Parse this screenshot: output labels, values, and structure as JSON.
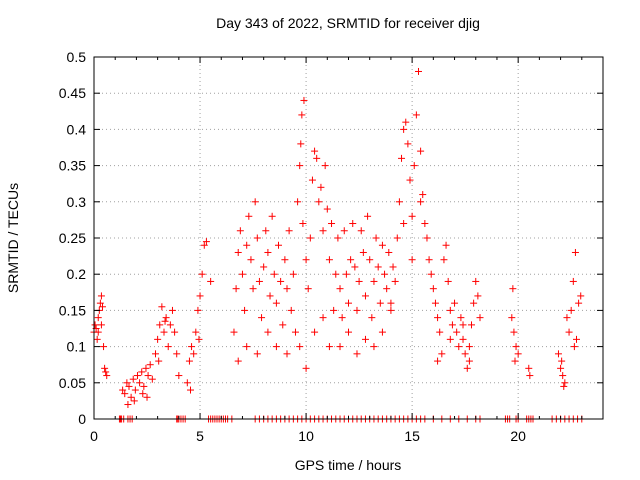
{
  "chart_data": {
    "type": "scatter",
    "title": "Day 343 of 2022, SRMTID for receiver djig",
    "xlabel": "GPS time / hours",
    "ylabel": "SRMTID / TECUs",
    "xlim": [
      0,
      24
    ],
    "ylim": [
      0,
      0.5
    ],
    "xticks": [
      0,
      5,
      10,
      15,
      20
    ],
    "yticks": [
      0,
      0.05,
      0.1,
      0.15,
      0.2,
      0.25,
      0.3,
      0.35,
      0.4,
      0.45,
      0.5
    ],
    "xtick_labels": [
      "0",
      "5",
      "10",
      "15",
      "20"
    ],
    "ytick_labels": [
      "0",
      "0.05",
      "0.1",
      "0.15",
      "0.2",
      "0.25",
      "0.3",
      "0.35",
      "0.4",
      "0.45",
      "0.5"
    ],
    "grid": true,
    "marker": "+",
    "color": "#ff0000",
    "series": [
      {
        "points": [
          [
            0.0,
            0.12
          ],
          [
            0.05,
            0.13
          ],
          [
            0.1,
            0.125
          ],
          [
            0.15,
            0.11
          ],
          [
            0.2,
            0.14
          ],
          [
            0.25,
            0.15
          ],
          [
            0.3,
            0.16
          ],
          [
            0.35,
            0.17
          ],
          [
            0.4,
            0.155
          ],
          [
            0.45,
            0.1
          ],
          [
            0.5,
            0.07
          ],
          [
            0.55,
            0.065
          ],
          [
            0.6,
            0.06
          ],
          [
            0.35,
            0.13
          ],
          [
            0.2,
            0.12
          ],
          [
            1.35,
            0.04
          ],
          [
            1.45,
            0.035
          ],
          [
            1.55,
            0.05
          ],
          [
            1.65,
            0.045
          ],
          [
            1.75,
            0.03
          ],
          [
            1.85,
            0.055
          ],
          [
            1.95,
            0.04
          ],
          [
            2.05,
            0.06
          ],
          [
            2.15,
            0.05
          ],
          [
            2.25,
            0.065
          ],
          [
            2.35,
            0.045
          ],
          [
            2.45,
            0.07
          ],
          [
            2.55,
            0.06
          ],
          [
            2.65,
            0.075
          ],
          [
            2.75,
            0.055
          ],
          [
            1.6,
            0.02
          ],
          [
            1.9,
            0.025
          ],
          [
            2.3,
            0.035
          ],
          [
            2.5,
            0.03
          ],
          [
            2.9,
            0.09
          ],
          [
            3.0,
            0.11
          ],
          [
            3.1,
            0.13
          ],
          [
            3.2,
            0.155
          ],
          [
            3.3,
            0.12
          ],
          [
            3.4,
            0.14
          ],
          [
            3.5,
            0.1
          ],
          [
            3.6,
            0.13
          ],
          [
            3.7,
            0.15
          ],
          [
            3.8,
            0.12
          ],
          [
            3.9,
            0.09
          ],
          [
            4.0,
            0.06
          ],
          [
            3.05,
            0.08
          ],
          [
            3.35,
            0.135
          ],
          [
            4.4,
            0.05
          ],
          [
            4.5,
            0.08
          ],
          [
            4.6,
            0.1
          ],
          [
            4.7,
            0.09
          ],
          [
            4.8,
            0.12
          ],
          [
            4.9,
            0.15
          ],
          [
            5.0,
            0.17
          ],
          [
            5.1,
            0.2
          ],
          [
            5.2,
            0.24
          ],
          [
            5.3,
            0.245
          ],
          [
            4.55,
            0.04
          ],
          [
            4.95,
            0.11
          ],
          [
            5.5,
            0.19
          ],
          [
            6.6,
            0.12
          ],
          [
            6.7,
            0.18
          ],
          [
            6.8,
            0.23
          ],
          [
            6.9,
            0.26
          ],
          [
            7.0,
            0.2
          ],
          [
            7.1,
            0.15
          ],
          [
            7.2,
            0.24
          ],
          [
            7.3,
            0.28
          ],
          [
            7.4,
            0.22
          ],
          [
            7.5,
            0.18
          ],
          [
            7.6,
            0.3
          ],
          [
            7.7,
            0.25
          ],
          [
            7.8,
            0.19
          ],
          [
            7.9,
            0.14
          ],
          [
            8.0,
            0.21
          ],
          [
            8.1,
            0.26
          ],
          [
            8.2,
            0.23
          ],
          [
            8.3,
            0.17
          ],
          [
            8.4,
            0.28
          ],
          [
            8.5,
            0.2
          ],
          [
            8.6,
            0.16
          ],
          [
            8.7,
            0.24
          ],
          [
            8.8,
            0.19
          ],
          [
            8.9,
            0.13
          ],
          [
            9.0,
            0.22
          ],
          [
            9.1,
            0.18
          ],
          [
            9.2,
            0.26
          ],
          [
            9.3,
            0.15
          ],
          [
            9.4,
            0.2
          ],
          [
            9.5,
            0.12
          ],
          [
            6.8,
            0.08
          ],
          [
            7.2,
            0.1
          ],
          [
            7.7,
            0.09
          ],
          [
            8.2,
            0.12
          ],
          [
            8.6,
            0.1
          ],
          [
            9.1,
            0.09
          ],
          [
            9.6,
            0.3
          ],
          [
            9.7,
            0.35
          ],
          [
            9.8,
            0.42
          ],
          [
            9.9,
            0.44
          ],
          [
            9.75,
            0.38
          ],
          [
            9.85,
            0.27
          ],
          [
            10.0,
            0.22
          ],
          [
            10.1,
            0.18
          ],
          [
            10.2,
            0.25
          ],
          [
            10.3,
            0.33
          ],
          [
            10.4,
            0.37
          ],
          [
            10.5,
            0.36
          ],
          [
            10.6,
            0.3
          ],
          [
            10.7,
            0.32
          ],
          [
            10.8,
            0.26
          ],
          [
            10.9,
            0.35
          ],
          [
            11.0,
            0.29
          ],
          [
            11.1,
            0.22
          ],
          [
            11.2,
            0.27
          ],
          [
            11.3,
            0.15
          ],
          [
            9.7,
            0.1
          ],
          [
            10.0,
            0.07
          ],
          [
            10.4,
            0.12
          ],
          [
            10.8,
            0.14
          ],
          [
            11.1,
            0.1
          ],
          [
            11.4,
            0.2
          ],
          [
            11.5,
            0.25
          ],
          [
            11.6,
            0.18
          ],
          [
            11.7,
            0.14
          ],
          [
            11.8,
            0.26
          ],
          [
            11.9,
            0.2
          ],
          [
            12.0,
            0.16
          ],
          [
            12.1,
            0.22
          ],
          [
            12.2,
            0.27
          ],
          [
            12.3,
            0.21
          ],
          [
            12.4,
            0.15
          ],
          [
            12.5,
            0.19
          ],
          [
            12.6,
            0.26
          ],
          [
            12.7,
            0.23
          ],
          [
            12.8,
            0.17
          ],
          [
            12.9,
            0.28
          ],
          [
            13.0,
            0.22
          ],
          [
            13.1,
            0.14
          ],
          [
            13.2,
            0.19
          ],
          [
            13.3,
            0.25
          ],
          [
            13.4,
            0.21
          ],
          [
            13.5,
            0.16
          ],
          [
            13.6,
            0.24
          ],
          [
            13.7,
            0.2
          ],
          [
            13.8,
            0.18
          ],
          [
            13.9,
            0.23
          ],
          [
            14.0,
            0.15
          ],
          [
            14.1,
            0.21
          ],
          [
            14.2,
            0.19
          ],
          [
            14.3,
            0.25
          ],
          [
            11.6,
            0.1
          ],
          [
            12.0,
            0.12
          ],
          [
            12.4,
            0.09
          ],
          [
            12.8,
            0.11
          ],
          [
            13.2,
            0.1
          ],
          [
            13.6,
            0.12
          ],
          [
            14.0,
            0.16
          ],
          [
            14.4,
            0.3
          ],
          [
            14.5,
            0.36
          ],
          [
            14.6,
            0.4
          ],
          [
            14.7,
            0.41
          ],
          [
            14.8,
            0.38
          ],
          [
            14.9,
            0.33
          ],
          [
            15.0,
            0.28
          ],
          [
            15.1,
            0.35
          ],
          [
            15.2,
            0.42
          ],
          [
            15.3,
            0.48
          ],
          [
            15.4,
            0.37
          ],
          [
            15.5,
            0.31
          ],
          [
            15.6,
            0.27
          ],
          [
            15.7,
            0.25
          ],
          [
            15.8,
            0.22
          ],
          [
            14.6,
            0.27
          ],
          [
            15.0,
            0.22
          ],
          [
            15.4,
            0.3
          ],
          [
            15.9,
            0.2
          ],
          [
            16.0,
            0.18
          ],
          [
            16.1,
            0.16
          ],
          [
            16.2,
            0.14
          ],
          [
            16.3,
            0.12
          ],
          [
            16.4,
            0.09
          ],
          [
            16.5,
            0.22
          ],
          [
            16.6,
            0.24
          ],
          [
            16.7,
            0.19
          ],
          [
            16.8,
            0.15
          ],
          [
            16.9,
            0.13
          ],
          [
            17.0,
            0.16
          ],
          [
            17.1,
            0.12
          ],
          [
            17.2,
            0.1
          ],
          [
            17.3,
            0.14
          ],
          [
            17.4,
            0.11
          ],
          [
            17.5,
            0.09
          ],
          [
            17.6,
            0.07
          ],
          [
            17.7,
            0.1
          ],
          [
            17.8,
            0.13
          ],
          [
            17.9,
            0.16
          ],
          [
            18.0,
            0.19
          ],
          [
            18.1,
            0.17
          ],
          [
            18.2,
            0.14
          ],
          [
            16.2,
            0.08
          ],
          [
            16.8,
            0.11
          ],
          [
            17.4,
            0.13
          ],
          [
            17.7,
            0.08
          ],
          [
            19.7,
            0.14
          ],
          [
            19.8,
            0.12
          ],
          [
            19.9,
            0.1
          ],
          [
            20.0,
            0.09
          ],
          [
            19.75,
            0.18
          ],
          [
            19.85,
            0.08
          ],
          [
            20.5,
            0.07
          ],
          [
            20.55,
            0.06
          ],
          [
            21.9,
            0.09
          ],
          [
            22.0,
            0.07
          ],
          [
            22.1,
            0.06
          ],
          [
            22.2,
            0.05
          ],
          [
            22.05,
            0.08
          ],
          [
            22.15,
            0.045
          ],
          [
            22.3,
            0.14
          ],
          [
            22.4,
            0.12
          ],
          [
            22.5,
            0.15
          ],
          [
            22.6,
            0.19
          ],
          [
            22.7,
            0.23
          ],
          [
            22.65,
            0.1
          ],
          [
            22.75,
            0.11
          ],
          [
            22.85,
            0.16
          ],
          [
            22.95,
            0.17
          ]
        ]
      }
    ],
    "zero_points_x": [
      1.2,
      1.25,
      1.3,
      1.4,
      1.6,
      1.7,
      1.8,
      3.9,
      3.95,
      4.0,
      4.1,
      4.2,
      4.3,
      5.4,
      5.5,
      5.6,
      5.7,
      5.8,
      5.9,
      6.0,
      6.1,
      6.2,
      6.3,
      6.5,
      7.6,
      7.8,
      8.0,
      8.2,
      8.4,
      8.6,
      8.8,
      9.0,
      9.2,
      9.4,
      9.6,
      9.8,
      10.0,
      10.2,
      10.4,
      10.6,
      10.8,
      11.0,
      11.2,
      11.4,
      11.6,
      11.8,
      12.0,
      12.2,
      12.4,
      12.6,
      12.8,
      13.0,
      13.2,
      13.4,
      13.6,
      13.8,
      14.0,
      14.2,
      14.4,
      14.6,
      14.8,
      15.0,
      15.2,
      15.4,
      15.6,
      16.0,
      16.4,
      16.8,
      17.2,
      17.6,
      18.0,
      18.2,
      19.4,
      19.5,
      19.6,
      19.9,
      20.0,
      20.4,
      20.5,
      20.6,
      20.7,
      21.6,
      21.8,
      22.0,
      22.2,
      22.4,
      22.6,
      22.8,
      23.0
    ],
    "x_minor_tick_hours": [
      1,
      2,
      3,
      4,
      6,
      7,
      8,
      9,
      11,
      12,
      13,
      14,
      16,
      17,
      18,
      19,
      21,
      22,
      23
    ]
  }
}
